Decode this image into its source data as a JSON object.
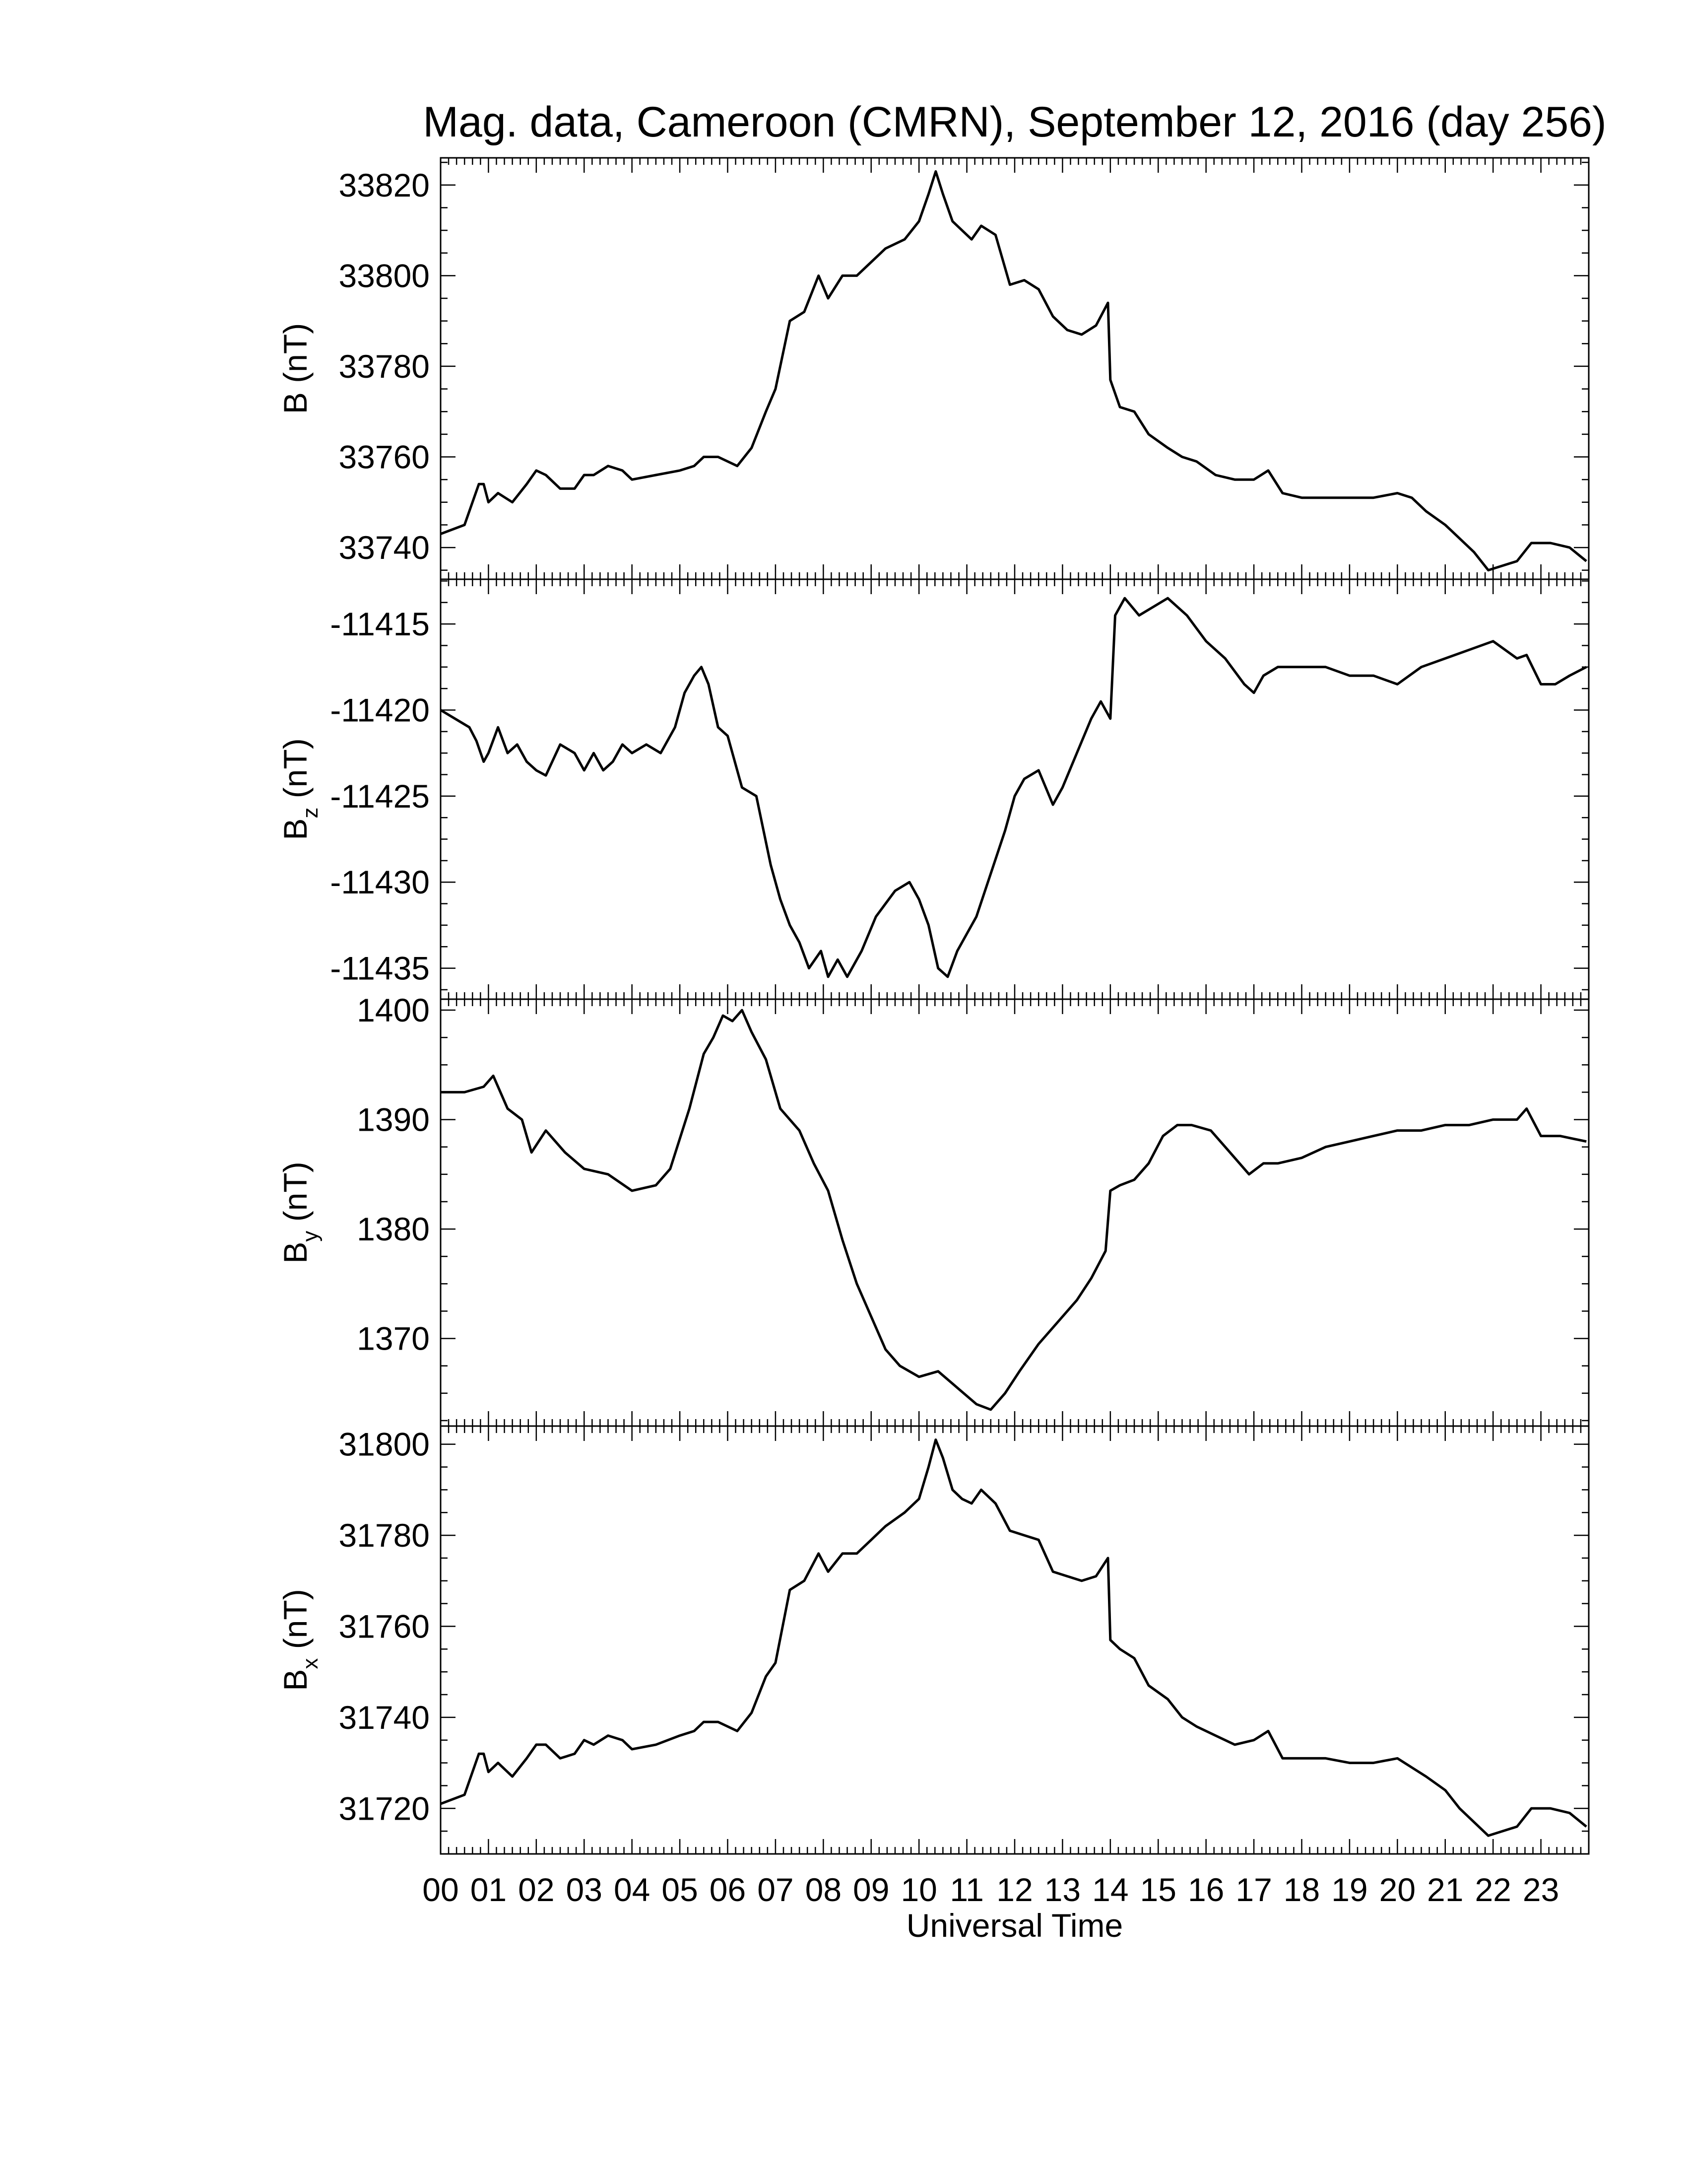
{
  "chart_data": {
    "type": "line",
    "title": "Mag. data, Cameroon (CMRN), September 12, 2016 (day 256)",
    "xlabel": "Universal Time",
    "x_unit": "hour (UT)",
    "xlim": [
      0,
      24
    ],
    "x_tick_labels": [
      "00",
      "01",
      "02",
      "03",
      "04",
      "05",
      "06",
      "07",
      "08",
      "09",
      "10",
      "11",
      "12",
      "13",
      "14",
      "15",
      "16",
      "17",
      "18",
      "19",
      "20",
      "21",
      "22",
      "23"
    ],
    "line_color": "#000000",
    "grid": false,
    "panels": [
      {
        "ylabel": {
          "base": "B",
          "sub": "",
          "unit": " (nT)"
        },
        "ylim": [
          33733,
          33826
        ],
        "y_ticks": [
          33740,
          33760,
          33780,
          33800,
          33820
        ],
        "y_tick_labels": [
          "33740",
          "33760",
          "33780",
          "33800",
          "33820"
        ],
        "series": [
          {
            "x": [
              0,
              0.5,
              0.8,
              0.9,
              1.0,
              1.2,
              1.5,
              1.8,
              2.0,
              2.2,
              2.5,
              2.8,
              3.0,
              3.2,
              3.5,
              3.8,
              4.0,
              4.5,
              5.0,
              5.3,
              5.5,
              5.8,
              6.2,
              6.5,
              6.8,
              7.0,
              7.3,
              7.6,
              7.9,
              8.1,
              8.4,
              8.7,
              9.0,
              9.3,
              9.7,
              10.0,
              10.2,
              10.35,
              10.5,
              10.7,
              10.9,
              11.1,
              11.3,
              11.6,
              11.9,
              12.2,
              12.5,
              12.8,
              13.1,
              13.4,
              13.7,
              13.95,
              14.0,
              14.2,
              14.5,
              14.8,
              15.2,
              15.5,
              15.8,
              16.2,
              16.6,
              17.0,
              17.3,
              17.6,
              18.0,
              18.5,
              19.0,
              19.5,
              20.0,
              20.3,
              20.6,
              21.0,
              21.3,
              21.6,
              21.9,
              22.2,
              22.5,
              22.8,
              23.2,
              23.6,
              23.95
            ],
            "y": [
              33743,
              33745,
              33754,
              33754,
              33750,
              33752,
              33750,
              33754,
              33757,
              33756,
              33753,
              33753,
              33756,
              33756,
              33758,
              33757,
              33755,
              33756,
              33757,
              33758,
              33760,
              33760,
              33758,
              33762,
              33770,
              33775,
              33790,
              33792,
              33800,
              33795,
              33800,
              33800,
              33803,
              33806,
              33808,
              33812,
              33818,
              33823,
              33818,
              33812,
              33810,
              33808,
              33811,
              33809,
              33798,
              33799,
              33797,
              33791,
              33788,
              33787,
              33789,
              33794,
              33777,
              33771,
              33770,
              33765,
              33762,
              33760,
              33759,
              33756,
              33755,
              33755,
              33757,
              33752,
              33751,
              33751,
              33751,
              33751,
              33752,
              33751,
              33748,
              33745,
              33742,
              33739,
              33735,
              33736,
              33737,
              33741,
              33741,
              33740,
              33737
            ]
          }
        ]
      },
      {
        "ylabel": {
          "base": "B",
          "sub": "z",
          "unit": " (nT)"
        },
        "ylim": [
          -11436.8,
          -11412.4
        ],
        "y_ticks": [
          -11435,
          -11430,
          -11425,
          -11420,
          -11415
        ],
        "y_tick_labels": [
          "-11435",
          "-11430",
          "-11425",
          "-11420",
          "-11415"
        ],
        "series": [
          {
            "x": [
              0,
              0.3,
              0.6,
              0.75,
              0.9,
              1.0,
              1.2,
              1.4,
              1.6,
              1.8,
              2.0,
              2.2,
              2.5,
              2.8,
              3.0,
              3.2,
              3.4,
              3.6,
              3.8,
              4.0,
              4.3,
              4.6,
              4.9,
              5.1,
              5.3,
              5.45,
              5.6,
              5.8,
              6.0,
              6.3,
              6.6,
              6.9,
              7.1,
              7.3,
              7.5,
              7.7,
              7.95,
              8.1,
              8.3,
              8.5,
              8.8,
              9.1,
              9.5,
              9.8,
              10.0,
              10.2,
              10.4,
              10.6,
              10.8,
              11.0,
              11.2,
              11.5,
              11.8,
              12.0,
              12.2,
              12.5,
              12.8,
              13.0,
              13.3,
              13.6,
              13.8,
              14.0,
              14.1,
              14.3,
              14.6,
              14.9,
              15.2,
              15.6,
              16.0,
              16.4,
              16.8,
              17.0,
              17.2,
              17.5,
              18.0,
              18.5,
              19.0,
              19.5,
              20.0,
              20.5,
              21.0,
              21.5,
              22.0,
              22.5,
              22.7,
              23.0,
              23.3,
              23.6,
              23.95
            ],
            "y": [
              -11420,
              -11420.5,
              -11421,
              -11421.8,
              -11423,
              -11422.5,
              -11421,
              -11422.5,
              -11422,
              -11423,
              -11423.5,
              -11423.8,
              -11422,
              -11422.5,
              -11423.5,
              -11422.5,
              -11423.5,
              -11423,
              -11422,
              -11422.5,
              -11422,
              -11422.5,
              -11421,
              -11419,
              -11418,
              -11417.5,
              -11418.5,
              -11421,
              -11421.5,
              -11424.5,
              -11425,
              -11429,
              -11431,
              -11432.5,
              -11433.5,
              -11435,
              -11434,
              -11435.5,
              -11434.5,
              -11435.5,
              -11434,
              -11432,
              -11430.5,
              -11430,
              -11431,
              -11432.5,
              -11435,
              -11435.5,
              -11434,
              -11433,
              -11432,
              -11429.5,
              -11427,
              -11425,
              -11424,
              -11423.5,
              -11425.5,
              -11424.5,
              -11422.5,
              -11420.5,
              -11419.5,
              -11420.5,
              -11414.5,
              -11413.5,
              -11414.5,
              -11414,
              -11413.5,
              -11414.5,
              -11416,
              -11417,
              -11418.5,
              -11419,
              -11418,
              -11417.5,
              -11417.5,
              -11417.5,
              -11418,
              -11418,
              -11418.5,
              -11417.5,
              -11417,
              -11416.5,
              -11416,
              -11417,
              -11416.8,
              -11418.5,
              -11418.5,
              -11418,
              -11417.5
            ]
          }
        ]
      },
      {
        "ylabel": {
          "base": "B",
          "sub": "y",
          "unit": " (nT)"
        },
        "ylim": [
          1362,
          1401
        ],
        "y_ticks": [
          1370,
          1380,
          1390,
          1400
        ],
        "y_tick_labels": [
          "1370",
          "1380",
          "1390",
          "1400"
        ],
        "series": [
          {
            "x": [
              0,
              0.5,
              0.9,
              1.1,
              1.4,
              1.7,
              1.9,
              2.2,
              2.6,
              3.0,
              3.5,
              4.0,
              4.5,
              4.8,
              5.2,
              5.5,
              5.7,
              5.9,
              6.1,
              6.3,
              6.5,
              6.8,
              7.1,
              7.5,
              7.8,
              8.1,
              8.4,
              8.7,
              9.0,
              9.3,
              9.6,
              10.0,
              10.4,
              10.8,
              11.2,
              11.5,
              11.8,
              12.1,
              12.5,
              12.9,
              13.3,
              13.6,
              13.9,
              14.0,
              14.2,
              14.5,
              14.8,
              15.1,
              15.4,
              15.7,
              16.1,
              16.5,
              16.9,
              17.2,
              17.5,
              18.0,
              18.5,
              19.0,
              19.5,
              20.0,
              20.5,
              21.0,
              21.5,
              22.0,
              22.5,
              22.7,
              23.0,
              23.4,
              23.95
            ],
            "y": [
              1392.5,
              1392.5,
              1393,
              1394,
              1391,
              1390,
              1387,
              1389,
              1387,
              1385.5,
              1385,
              1383.5,
              1384,
              1385.5,
              1391,
              1396,
              1397.5,
              1399.5,
              1399,
              1400,
              1398,
              1395.5,
              1391,
              1389,
              1386,
              1383.5,
              1379,
              1375,
              1372,
              1369,
              1367.5,
              1366.5,
              1367,
              1365.5,
              1364,
              1363.5,
              1365,
              1367,
              1369.5,
              1371.5,
              1373.5,
              1375.5,
              1378,
              1383.5,
              1384,
              1384.5,
              1386,
              1388.5,
              1389.5,
              1389.5,
              1389,
              1387,
              1385,
              1386,
              1386,
              1386.5,
              1387.5,
              1388,
              1388.5,
              1389,
              1389,
              1389.5,
              1389.5,
              1390,
              1390,
              1391,
              1388.5,
              1388.5,
              1388
            ]
          }
        ]
      },
      {
        "ylabel": {
          "base": "B",
          "sub": "x",
          "unit": " (nT)"
        },
        "ylim": [
          31710,
          31804
        ],
        "y_ticks": [
          31720,
          31740,
          31760,
          31780,
          31800
        ],
        "y_tick_labels": [
          "31720",
          "31740",
          "31760",
          "31780",
          "31800"
        ],
        "series": [
          {
            "x": [
              0,
              0.5,
              0.8,
              0.9,
              1.0,
              1.2,
              1.5,
              1.8,
              2.0,
              2.2,
              2.5,
              2.8,
              3.0,
              3.2,
              3.5,
              3.8,
              4.0,
              4.5,
              5.0,
              5.3,
              5.5,
              5.8,
              6.2,
              6.5,
              6.8,
              7.0,
              7.3,
              7.6,
              7.9,
              8.1,
              8.4,
              8.7,
              9.0,
              9.3,
              9.7,
              10.0,
              10.2,
              10.35,
              10.5,
              10.7,
              10.9,
              11.1,
              11.3,
              11.6,
              11.9,
              12.2,
              12.5,
              12.8,
              13.1,
              13.4,
              13.7,
              13.95,
              14.0,
              14.2,
              14.5,
              14.8,
              15.2,
              15.5,
              15.8,
              16.2,
              16.6,
              17.0,
              17.3,
              17.6,
              18.0,
              18.5,
              19.0,
              19.5,
              20.0,
              20.3,
              20.6,
              21.0,
              21.3,
              21.6,
              21.9,
              22.2,
              22.5,
              22.8,
              23.2,
              23.6,
              23.95
            ],
            "y": [
              31721,
              31723,
              31732,
              31732,
              31728,
              31730,
              31727,
              31731,
              31734,
              31734,
              31731,
              31732,
              31735,
              31734,
              31736,
              31735,
              31733,
              31734,
              31736,
              31737,
              31739,
              31739,
              31737,
              31741,
              31749,
              31752,
              31768,
              31770,
              31776,
              31772,
              31776,
              31776,
              31779,
              31782,
              31785,
              31788,
              31795,
              31801,
              31797,
              31790,
              31788,
              31787,
              31790,
              31787,
              31781,
              31780,
              31779,
              31772,
              31771,
              31770,
              31771,
              31775,
              31757,
              31755,
              31753,
              31747,
              31744,
              31740,
              31738,
              31736,
              31734,
              31735,
              31737,
              31731,
              31731,
              31731,
              31730,
              31730,
              31731,
              31729,
              31727,
              31724,
              31720,
              31717,
              31714,
              31715,
              31716,
              31720,
              31720,
              31719,
              31716
            ]
          }
        ]
      }
    ]
  }
}
